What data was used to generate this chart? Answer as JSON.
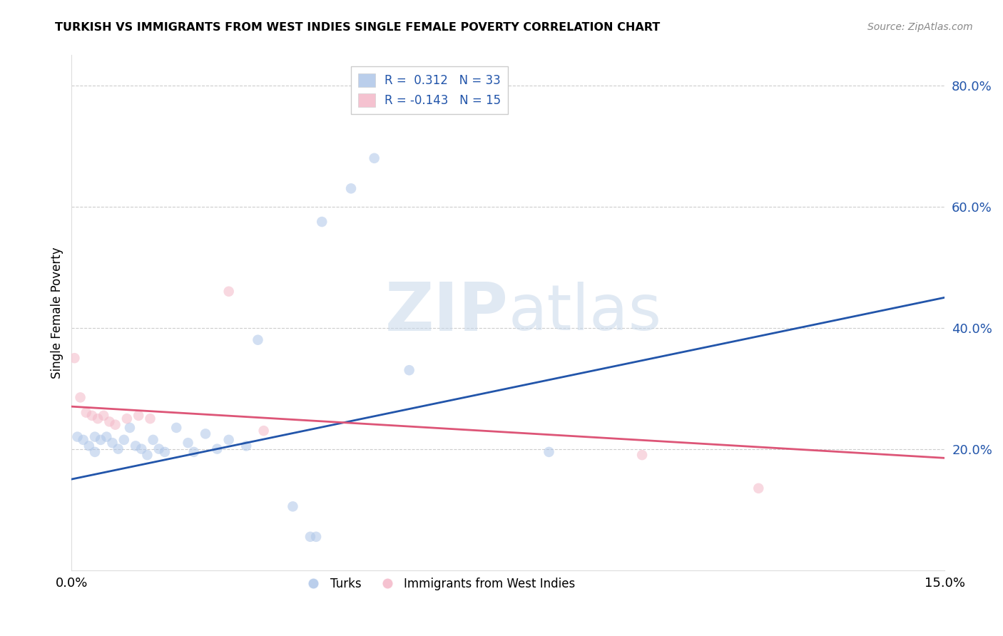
{
  "title": "TURKISH VS IMMIGRANTS FROM WEST INDIES SINGLE FEMALE POVERTY CORRELATION CHART",
  "source": "Source: ZipAtlas.com",
  "ylabel": "Single Female Poverty",
  "xlim": [
    0.0,
    15.0
  ],
  "ylim": [
    0.0,
    85.0
  ],
  "ytick_values": [
    20.0,
    40.0,
    60.0,
    80.0
  ],
  "background_color": "#ffffff",
  "grid_color": "#cccccc",
  "blue_color": "#aec6e8",
  "pink_color": "#f4b8c8",
  "blue_line_color": "#2255aa",
  "pink_line_color": "#dd5577",
  "legend_blue_label": "R =  0.312   N = 33",
  "legend_pink_label": "R = -0.143   N = 15",
  "turks_label": "Turks",
  "west_indies_label": "Immigrants from West Indies",
  "turks_data": [
    [
      0.1,
      22.0
    ],
    [
      0.2,
      21.5
    ],
    [
      0.3,
      20.5
    ],
    [
      0.4,
      22.0
    ],
    [
      0.4,
      19.5
    ],
    [
      0.5,
      21.5
    ],
    [
      0.6,
      22.0
    ],
    [
      0.7,
      21.0
    ],
    [
      0.8,
      20.0
    ],
    [
      0.9,
      21.5
    ],
    [
      1.0,
      23.5
    ],
    [
      1.1,
      20.5
    ],
    [
      1.2,
      20.0
    ],
    [
      1.3,
      19.0
    ],
    [
      1.4,
      21.5
    ],
    [
      1.5,
      20.0
    ],
    [
      1.6,
      19.5
    ],
    [
      1.8,
      23.5
    ],
    [
      2.0,
      21.0
    ],
    [
      2.1,
      19.5
    ],
    [
      2.3,
      22.5
    ],
    [
      2.5,
      20.0
    ],
    [
      2.7,
      21.5
    ],
    [
      3.0,
      20.5
    ],
    [
      3.2,
      38.0
    ],
    [
      4.3,
      57.5
    ],
    [
      4.8,
      63.0
    ],
    [
      5.2,
      68.0
    ],
    [
      5.8,
      33.0
    ],
    [
      8.2,
      19.5
    ],
    [
      3.8,
      10.5
    ],
    [
      4.1,
      5.5
    ],
    [
      4.2,
      5.5
    ]
  ],
  "west_indies_data": [
    [
      0.05,
      35.0
    ],
    [
      0.15,
      28.5
    ],
    [
      0.25,
      26.0
    ],
    [
      0.35,
      25.5
    ],
    [
      0.45,
      25.0
    ],
    [
      0.55,
      25.5
    ],
    [
      0.65,
      24.5
    ],
    [
      0.75,
      24.0
    ],
    [
      0.95,
      25.0
    ],
    [
      1.15,
      25.5
    ],
    [
      1.35,
      25.0
    ],
    [
      2.7,
      46.0
    ],
    [
      3.3,
      23.0
    ],
    [
      9.8,
      19.0
    ],
    [
      11.8,
      13.5
    ]
  ],
  "marker_size": 110,
  "alpha": 0.55,
  "watermark_zip": "ZIP",
  "watermark_atlas": "atlas",
  "watermark_color_zip": "#c8d8ea",
  "watermark_color_atlas": "#c8d8ea",
  "watermark_fontsize": 68
}
